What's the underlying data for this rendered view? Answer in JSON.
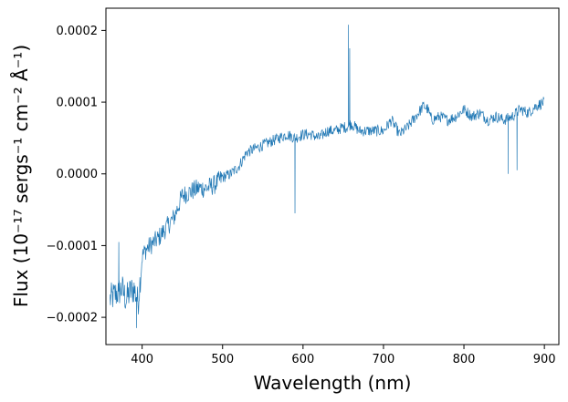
{
  "chart_data": {
    "type": "line",
    "title": "",
    "xlabel": "Wavelength (nm)",
    "ylabel": "Flux (10⁻¹⁷ sergs⁻¹ cm⁻² Å⁻¹)",
    "xlim": [
      355,
      918
    ],
    "ylim": [
      -0.000238,
      0.000231
    ],
    "xticks": [
      400,
      500,
      600,
      700,
      800,
      900
    ],
    "xtick_labels": [
      "400",
      "500",
      "600",
      "700",
      "800",
      "900"
    ],
    "yticks": [
      -0.0002,
      -0.0001,
      0.0,
      0.0001,
      0.0002
    ],
    "ytick_labels": [
      "−0.0002",
      "−0.0001",
      "0.0000",
      "0.0001",
      "0.0002"
    ],
    "grid": false,
    "line_color": "#1f77b4",
    "series": [
      {
        "x": [
          360,
          365,
          370,
          375,
          380,
          385,
          390,
          395,
          400,
          405,
          410,
          420,
          430,
          440,
          450,
          460,
          470,
          480,
          490,
          500,
          510,
          520,
          530,
          540,
          550,
          560,
          570,
          580,
          590,
          600,
          610,
          620,
          630,
          640,
          650,
          655,
          660,
          665,
          670,
          680,
          690,
          700,
          710,
          720,
          730,
          740,
          750,
          755,
          760,
          770,
          780,
          790,
          800,
          810,
          820,
          830,
          840,
          850,
          860,
          870,
          880,
          890,
          900
        ],
        "y": [
          -0.000175,
          -0.00017,
          -0.000165,
          -0.00016,
          -0.000175,
          -0.000165,
          -0.00016,
          -0.00018,
          -0.000115,
          -0.000105,
          -0.0001,
          -9e-05,
          -7.5e-05,
          -6e-05,
          -3e-05,
          -2.5e-05,
          -2e-05,
          -2e-05,
          -1.5e-05,
          -5e-06,
          0.0,
          1e-05,
          3e-05,
          3.5e-05,
          4e-05,
          4.5e-05,
          5e-05,
          5.5e-05,
          5e-05,
          5.5e-05,
          5.5e-05,
          5e-05,
          6e-05,
          6e-05,
          6.5e-05,
          6.5e-05,
          7e-05,
          6.5e-05,
          6e-05,
          6e-05,
          6e-05,
          6e-05,
          7.5e-05,
          5.5e-05,
          6.5e-05,
          8e-05,
          9.5e-05,
          9e-05,
          7.5e-05,
          8e-05,
          7.5e-05,
          8e-05,
          9e-05,
          8e-05,
          8.5e-05,
          7.5e-05,
          8e-05,
          7.5e-05,
          8e-05,
          9e-05,
          8.5e-05,
          9.5e-05,
          0.0001
        ]
      }
    ],
    "features": [
      {
        "x": 371,
        "y": -9.5e-05
      },
      {
        "x": 393,
        "y": -0.000215
      },
      {
        "x": 590,
        "y": -5.5e-05
      },
      {
        "x": 656.5,
        "y": 0.000208
      },
      {
        "x": 658,
        "y": 0.000175
      },
      {
        "x": 855,
        "y": 0.0
      },
      {
        "x": 866,
        "y": 5e-06
      }
    ]
  }
}
